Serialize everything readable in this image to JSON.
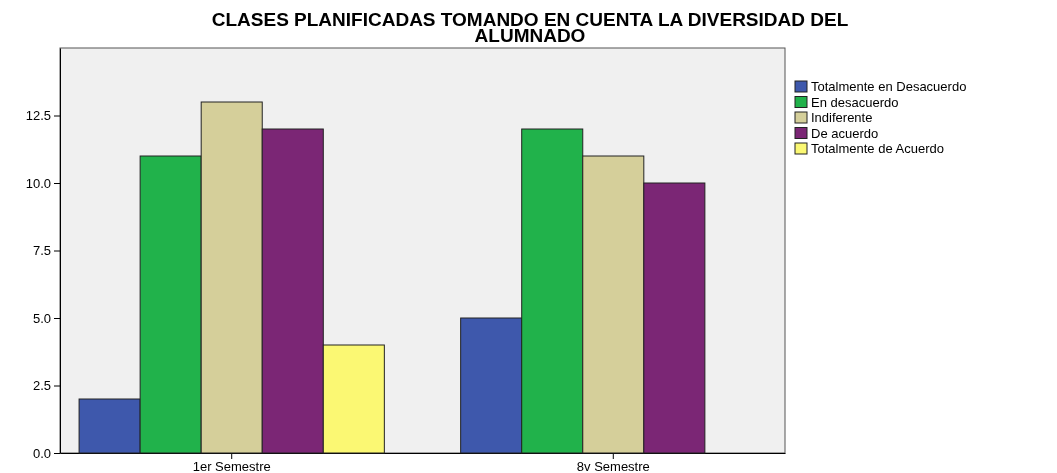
{
  "chart_data": {
    "type": "bar",
    "title": "CLASES PLANIFICADAS TOMANDO EN CUENTA LA DIVERSIDAD DEL ALUMNADO",
    "categories": [
      "1er Semestre",
      "8v Semestre"
    ],
    "series": [
      {
        "name": "Totalmente en Desacuerdo",
        "color": "#3e58ac",
        "values": [
          2,
          5
        ]
      },
      {
        "name": "En desacuerdo",
        "color": "#21b24b",
        "values": [
          11,
          12
        ]
      },
      {
        "name": "Indiferente",
        "color": "#d5cf9a",
        "values": [
          13,
          11
        ]
      },
      {
        "name": "De acuerdo",
        "color": "#7b2675",
        "values": [
          12,
          10
        ]
      },
      {
        "name": "Totalmente de Acuerdo",
        "color": "#fbf873",
        "values": [
          4,
          null
        ]
      }
    ],
    "ylim": [
      0,
      15
    ],
    "yticks": [
      {
        "value": 0,
        "label": "0.0"
      },
      {
        "value": 2.5,
        "label": "2.5"
      },
      {
        "value": 5,
        "label": "5.0"
      },
      {
        "value": 7.5,
        "label": "7.5"
      },
      {
        "value": 10,
        "label": "10.0"
      },
      {
        "value": 12.5,
        "label": "12.5"
      }
    ],
    "legend": "right",
    "grid": false
  }
}
